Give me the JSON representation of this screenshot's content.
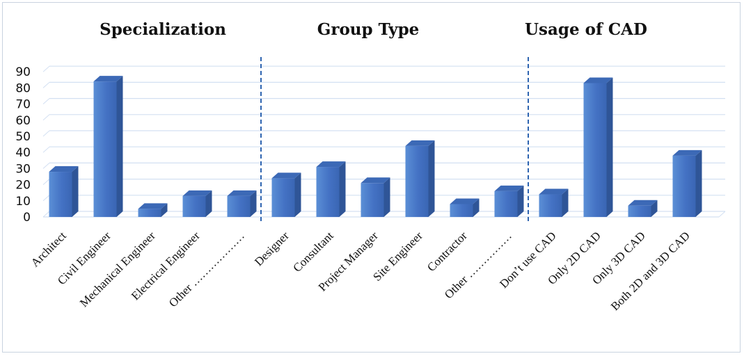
{
  "chart_data": {
    "type": "bar",
    "style": "3d-column",
    "ylim": [
      0,
      90
    ],
    "yticks": [
      0,
      10,
      20,
      30,
      40,
      50,
      60,
      70,
      80,
      90
    ],
    "grid": true,
    "colors": {
      "bar": "#4472c4",
      "grid": "#d3e0f2",
      "separator": "#2e64b0"
    },
    "groups": [
      {
        "title": "Specialization",
        "categories": [
          "Architect",
          "Civil Engineer",
          "Mechanical Engineer",
          "Electrical Engineer",
          "Other ………………"
        ],
        "values": [
          28,
          84,
          5,
          13,
          13
        ]
      },
      {
        "title": "Group Type",
        "categories": [
          "Designer",
          "Consultant",
          "Project Manager",
          "Site Engineer",
          "Contractor",
          "Other ……………"
        ],
        "values": [
          24,
          31,
          21,
          44,
          8,
          16
        ]
      },
      {
        "title": "Usage of CAD",
        "categories": [
          "Don’t use CAD",
          "Only 2D CAD",
          "Only 3D CAD",
          "Both 2D and 3D CAD"
        ],
        "values": [
          14,
          83,
          7,
          38
        ]
      }
    ]
  }
}
